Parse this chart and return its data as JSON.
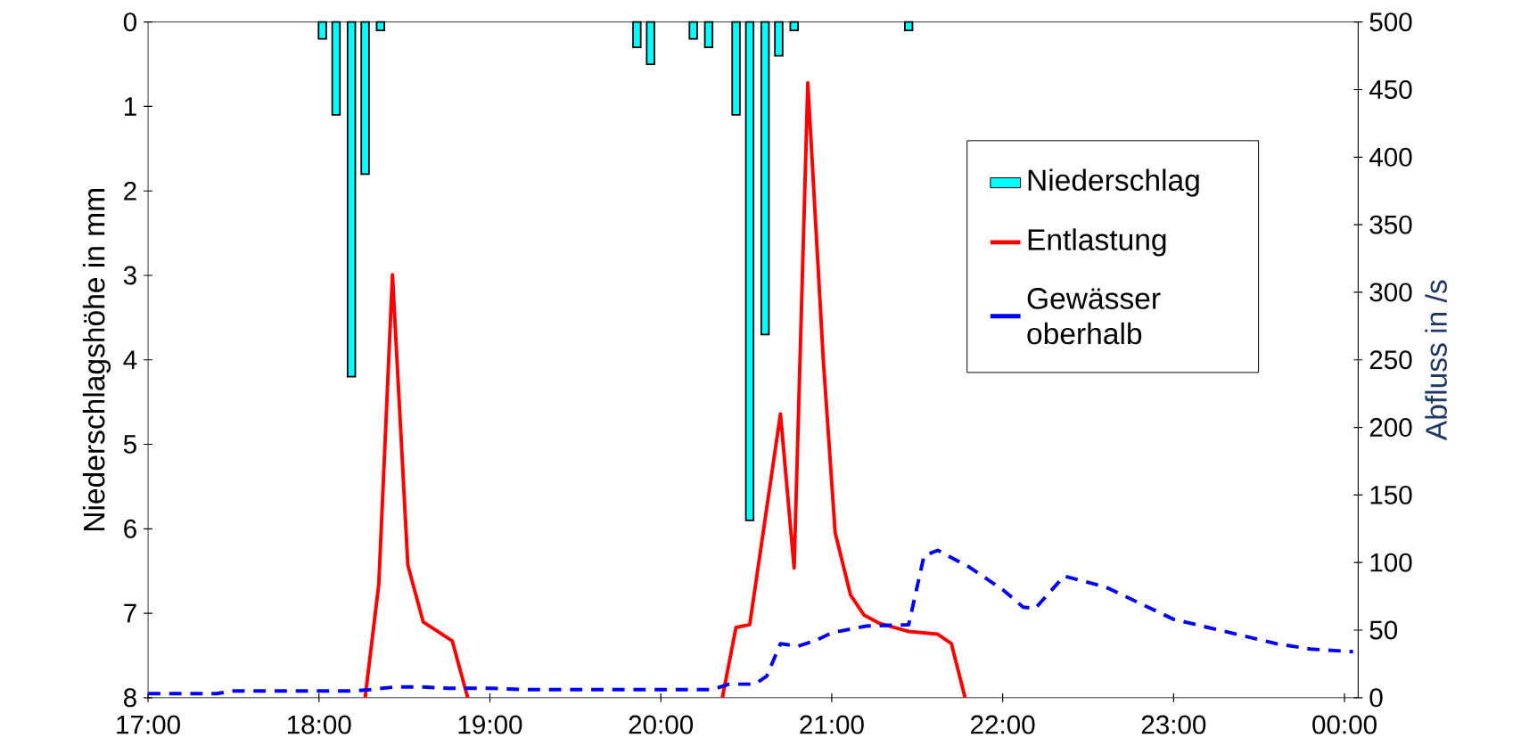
{
  "chart_data": {
    "type": "bar",
    "ylabel": "Niederschlagshöhe  in mm",
    "y2label": "Abfluss in /s",
    "xlim": [
      17,
      24.08
    ],
    "ylim": [
      8,
      0
    ],
    "y2lim": [
      0,
      500
    ],
    "xticks": [
      {
        "value": 17,
        "label": "17:00"
      },
      {
        "value": 18,
        "label": "18:00"
      },
      {
        "value": 19,
        "label": "19:00"
      },
      {
        "value": 20,
        "label": "20:00"
      },
      {
        "value": 21,
        "label": "21:00"
      },
      {
        "value": 22,
        "label": "22:00"
      },
      {
        "value": 23,
        "label": "23:00"
      },
      {
        "value": 24,
        "label": "00:00"
      }
    ],
    "yticks": [
      0,
      1,
      2,
      3,
      4,
      5,
      6,
      7,
      8
    ],
    "y2ticks": [
      0,
      50,
      100,
      150,
      200,
      250,
      300,
      350,
      400,
      450,
      500
    ],
    "legend": "top right",
    "series": [
      {
        "name": "Niederschlag",
        "axis": "y",
        "color": "#00ffff",
        "x": [
          18.02,
          18.1,
          18.19,
          18.27,
          18.36,
          19.86,
          19.94,
          20.19,
          20.28,
          20.44,
          20.52,
          20.61,
          20.69,
          20.78,
          21.45
        ],
        "values": [
          0.2,
          1.1,
          4.2,
          1.8,
          0.1,
          0.3,
          0.5,
          0.2,
          0.3,
          1.1,
          5.9,
          3.7,
          0.4,
          0.1,
          0.1
        ]
      },
      {
        "name": "Entlastung",
        "type": "line",
        "axis": "y2",
        "color": "#ff0000",
        "line_style": "solid",
        "x": [
          18.27,
          18.35,
          18.43,
          18.52,
          18.61,
          18.78,
          18.87,
          19.5,
          20.36,
          20.44,
          20.52,
          20.7,
          20.78,
          20.86,
          20.95,
          21.02,
          21.11,
          21.19,
          21.28,
          21.45,
          21.62,
          21.7,
          21.78
        ],
        "values": [
          0,
          84,
          313,
          98,
          56,
          42,
          0,
          null,
          0,
          52,
          54,
          210,
          96,
          455,
          251,
          122,
          76,
          61,
          55,
          49,
          47,
          40,
          0
        ]
      },
      {
        "name": "Gewässer oberhalb",
        "type": "line",
        "axis": "y2",
        "color": "#0000ff",
        "line_style": "dashed",
        "x": [
          17,
          17.4,
          17.5,
          18,
          18.2,
          18.3,
          18.45,
          18.6,
          18.75,
          19,
          19.2,
          20,
          20.3,
          20.4,
          20.55,
          20.62,
          20.7,
          20.8,
          20.9,
          21.0,
          21.2,
          21.45,
          21.54,
          21.62,
          21.8,
          22.0,
          22.12,
          22.19,
          22.36,
          22.6,
          22.8,
          23.0,
          23.2,
          23.4,
          23.6,
          23.8,
          24.05
        ],
        "values": [
          3,
          3,
          5,
          5,
          5,
          6,
          8,
          8,
          7,
          7,
          6,
          6,
          6,
          10,
          10,
          16,
          40,
          38,
          42,
          48,
          53,
          54,
          105,
          109,
          97,
          80,
          67,
          66,
          90,
          82,
          70,
          58,
          52,
          46,
          40,
          36,
          34
        ]
      }
    ]
  }
}
